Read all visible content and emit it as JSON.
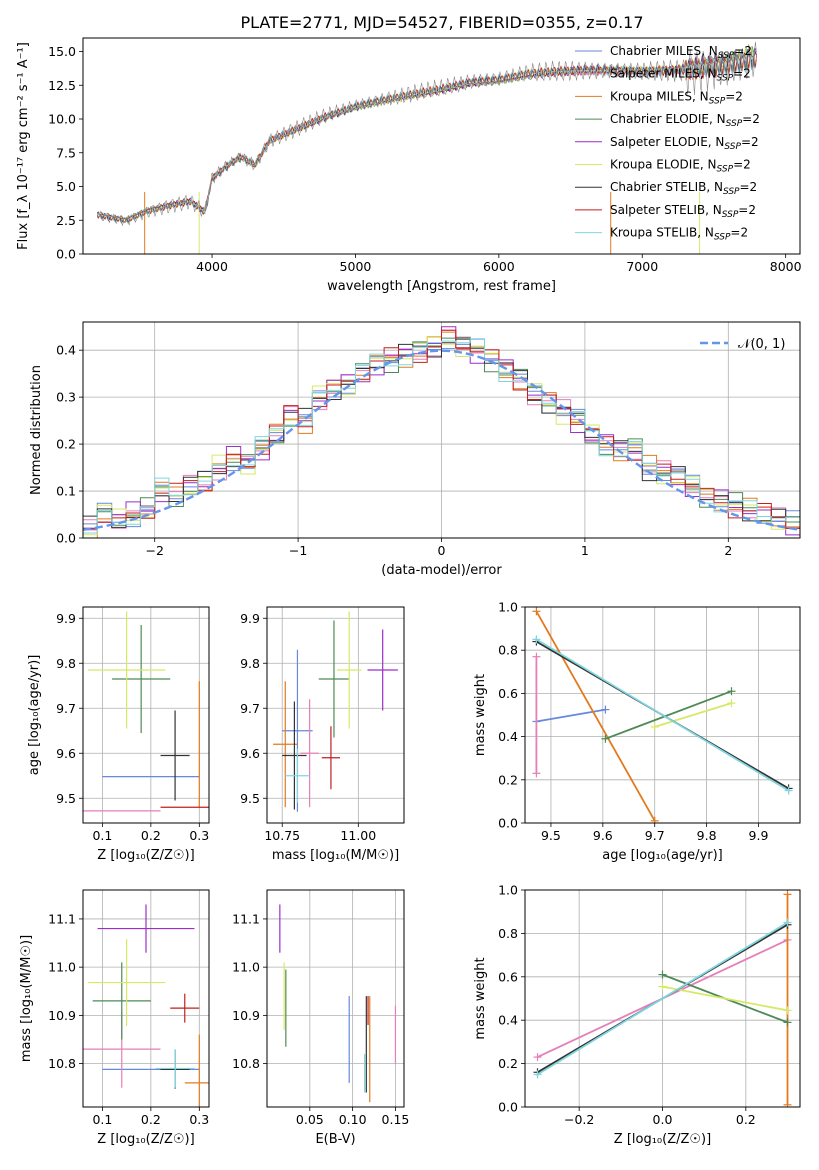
{
  "figure_title": "PLATE=2771, MJD=54527, FIBERID=0355, z=0.17",
  "series_styles": [
    {
      "name": "Chabrier MILES",
      "color": "#6688dd"
    },
    {
      "name": "Salpeter MILES",
      "color": "#e67fb8"
    },
    {
      "name": "Kroupa MILES",
      "color": "#e37a1f"
    },
    {
      "name": "Chabrier ELODIE",
      "color": "#4e8a55"
    },
    {
      "name": "Salpeter ELODIE",
      "color": "#9b2fc9"
    },
    {
      "name": "Kroupa ELODIE",
      "color": "#d6e866"
    },
    {
      "name": "Chabrier STELIB",
      "color": "#333333"
    },
    {
      "name": "Salpeter STELIB",
      "color": "#c21f1f"
    },
    {
      "name": "Kroupa STELIB",
      "color": "#7fd6e0"
    }
  ],
  "chart_data": [
    {
      "id": "spectrum",
      "type": "line",
      "xlabel": "wavelength [Angstrom, rest frame]",
      "ylabel": "Flux [f_λ 10⁻¹⁷ erg cm⁻² s⁻¹ A⁻¹]",
      "xlim": [
        3100,
        8100
      ],
      "ylim": [
        0,
        16
      ],
      "xticks": [
        4000,
        5000,
        6000,
        7000,
        8000
      ],
      "yticks": [
        "0.0",
        "2.5",
        "5.0",
        "7.5",
        "10.0",
        "12.5",
        "15.0"
      ],
      "grid": false,
      "legend_position": "top-right",
      "legend": [
        {
          "prefix": "Chabrier MILES, N",
          "sub": "SSP",
          "suffix": "=2"
        },
        {
          "prefix": "Salpeter MILES, N",
          "sub": "SSP",
          "suffix": "=2"
        },
        {
          "prefix": "Kroupa MILES, N",
          "sub": "SSP",
          "suffix": "=2"
        },
        {
          "prefix": "Chabrier ELODIE, N",
          "sub": "SSP",
          "suffix": "=2"
        },
        {
          "prefix": "Salpeter ELODIE, N",
          "sub": "SSP",
          "suffix": "=2"
        },
        {
          "prefix": "Kroupa ELODIE, N",
          "sub": "SSP",
          "suffix": "=2"
        },
        {
          "prefix": "Chabrier STELIB, N",
          "sub": "SSP",
          "suffix": "=2"
        },
        {
          "prefix": "Salpeter STELIB, N",
          "sub": "SSP",
          "suffix": "=2"
        },
        {
          "prefix": "Kroupa STELIB, N",
          "sub": "SSP",
          "suffix": "=2"
        }
      ],
      "data_color": "#888888",
      "data_flux": {
        "x": [
          3200,
          3400,
          3550,
          3700,
          3850,
          3950,
          4000,
          4100,
          4200,
          4300,
          4400,
          4600,
          4800,
          5000,
          5200,
          5400,
          5600,
          5800,
          6000,
          6200,
          6400,
          6600,
          6800,
          7000,
          7200,
          7400,
          7600,
          7800
        ],
        "y": [
          2.9,
          2.5,
          3.2,
          3.6,
          3.9,
          3.1,
          5.6,
          6.5,
          7.2,
          6.6,
          8.4,
          9.3,
          10.2,
          10.9,
          11.4,
          11.8,
          12.2,
          12.7,
          12.9,
          13.3,
          13.5,
          13.6,
          13.6,
          13.5,
          13.6,
          13.8,
          14.1,
          14.6
        ]
      },
      "mask_lines_x": [
        3530,
        3910,
        6780,
        7400
      ]
    },
    {
      "id": "residual-histogram",
      "type": "line",
      "xlabel": "(data-model)/error",
      "ylabel": "Normed distribution",
      "xlim": [
        -2.5,
        2.5
      ],
      "ylim": [
        0,
        0.46
      ],
      "xticks": [
        "−2",
        "−1",
        "0",
        "1",
        "2"
      ],
      "yticks": [
        "0.0",
        "0.1",
        "0.2",
        "0.3",
        "0.4"
      ],
      "grid": true,
      "legend_position": "top-right",
      "legend": [
        {
          "name": "𝒩(0, 1)",
          "color": "#6495ED",
          "dashed": true
        }
      ],
      "bin_edges": [
        -2.5,
        -2.4,
        -2.3,
        -2.2,
        -2.1,
        -2.0,
        -1.9,
        -1.8,
        -1.7,
        -1.6,
        -1.5,
        -1.4,
        -1.3,
        -1.2,
        -1.1,
        -1.0,
        -0.9,
        -0.8,
        -0.7,
        -0.6,
        -0.5,
        -0.4,
        -0.3,
        -0.2,
        -0.1,
        0.0,
        0.1,
        0.2,
        0.3,
        0.4,
        0.5,
        0.6,
        0.7,
        0.8,
        0.9,
        1.0,
        1.1,
        1.2,
        1.3,
        1.4,
        1.5,
        1.6,
        1.7,
        1.8,
        1.9,
        2.0,
        2.1,
        2.2,
        2.3,
        2.4,
        2.5
      ],
      "histogram_envelope": [
        0.02,
        0.05,
        0.04,
        0.05,
        0.06,
        0.1,
        0.09,
        0.11,
        0.12,
        0.15,
        0.17,
        0.16,
        0.19,
        0.22,
        0.26,
        0.25,
        0.3,
        0.32,
        0.33,
        0.35,
        0.37,
        0.38,
        0.39,
        0.4,
        0.41,
        0.43,
        0.41,
        0.4,
        0.38,
        0.36,
        0.34,
        0.31,
        0.29,
        0.27,
        0.25,
        0.22,
        0.2,
        0.19,
        0.19,
        0.15,
        0.14,
        0.13,
        0.11,
        0.09,
        0.08,
        0.07,
        0.06,
        0.05,
        0.04,
        0.03
      ],
      "gaussian": {
        "mean": 0,
        "sigma": 1
      }
    },
    {
      "id": "age-vs-metallicity",
      "type": "scatter",
      "xlabel": "Z [log₁₀(Z/Z☉)]",
      "ylabel": "age  [log₁₀(age/yr)]",
      "xlim": [
        0.06,
        0.32
      ],
      "ylim": [
        9.445,
        9.925
      ],
      "xticks": [
        0.1,
        0.2,
        0.3
      ],
      "xtick_labels": [
        "0.1",
        "0.2",
        "0.3"
      ],
      "yticks": [
        9.5,
        9.6,
        9.7,
        9.8,
        9.9
      ],
      "ytick_labels": [
        "9.5",
        "9.6",
        "9.7",
        "9.8",
        "9.9"
      ],
      "grid": true,
      "points": [
        {
          "series": "Chabrier MILES",
          "x": 0.2,
          "xerr": 0.1,
          "y": 9.548,
          "yerr": 0
        },
        {
          "series": "Salpeter MILES",
          "x": 0.14,
          "xerr": 0.08,
          "y": 9.472,
          "yerr": 0
        },
        {
          "series": "Kroupa MILES",
          "x": 0.3,
          "xerr": 0.0,
          "y": 9.62,
          "yerr": 0.14
        },
        {
          "series": "Chabrier ELODIE",
          "x": 0.18,
          "xerr": 0.06,
          "y": 9.765,
          "yerr": 0.12
        },
        {
          "series": "Kroupa ELODIE",
          "x": 0.15,
          "xerr": 0.08,
          "y": 9.785,
          "yerr": 0.13
        },
        {
          "series": "Chabrier STELIB",
          "x": 0.25,
          "xerr": 0.03,
          "y": 9.595,
          "yerr": 0.1
        },
        {
          "series": "Salpeter STELIB",
          "x": 0.27,
          "xerr": 0.05,
          "y": 9.48,
          "yerr": 0
        }
      ]
    },
    {
      "id": "age-vs-mass",
      "type": "scatter",
      "xlabel": "mass [log₁₀(M/M☉)]",
      "ylabel": "",
      "xlim": [
        10.7,
        11.15
      ],
      "ylim": [
        9.445,
        9.925
      ],
      "xticks": [
        10.75,
        11.0
      ],
      "xtick_labels": [
        "10.75",
        "11.00"
      ],
      "yticks": [
        9.5,
        9.6,
        9.7,
        9.8,
        9.9
      ],
      "ytick_labels": [
        "9.5",
        "9.6",
        "9.7",
        "9.8",
        "9.9"
      ],
      "grid": true,
      "points": [
        {
          "series": "Chabrier MILES",
          "x": 10.8,
          "xerr": 0.05,
          "y": 9.65,
          "yerr": 0.18
        },
        {
          "series": "Salpeter MILES",
          "x": 10.84,
          "xerr": 0.03,
          "y": 9.6,
          "yerr": 0.12
        },
        {
          "series": "Kroupa MILES",
          "x": 10.76,
          "xerr": 0.04,
          "y": 9.62,
          "yerr": 0.14
        },
        {
          "series": "Chabrier ELODIE",
          "x": 10.92,
          "xerr": 0.05,
          "y": 9.765,
          "yerr": 0.13
        },
        {
          "series": "Salpeter ELODIE",
          "x": 11.08,
          "xerr": 0.05,
          "y": 9.785,
          "yerr": 0.09
        },
        {
          "series": "Kroupa ELODIE",
          "x": 10.97,
          "xerr": 0.04,
          "y": 9.785,
          "yerr": 0.13
        },
        {
          "series": "Chabrier STELIB",
          "x": 10.79,
          "xerr": 0.04,
          "y": 9.595,
          "yerr": 0.12
        },
        {
          "series": "Salpeter STELIB",
          "x": 10.91,
          "xerr": 0.03,
          "y": 9.59,
          "yerr": 0.07
        },
        {
          "series": "Kroupa STELIB",
          "x": 10.8,
          "xerr": 0.04,
          "y": 9.55,
          "yerr": 0.06
        }
      ]
    },
    {
      "id": "mass-weight-vs-age",
      "type": "line",
      "xlabel": "age  [log₁₀(age/yr)]",
      "ylabel": "mass weight",
      "xlim": [
        9.45,
        9.98
      ],
      "ylim": [
        0,
        1
      ],
      "xticks": [
        9.5,
        9.6,
        9.7,
        9.8,
        9.9
      ],
      "xtick_labels": [
        "9.5",
        "9.6",
        "9.7",
        "9.8",
        "9.9"
      ],
      "yticks": [
        0,
        0.2,
        0.4,
        0.6,
        0.8,
        1.0
      ],
      "ytick_labels": [
        "0.0",
        "0.2",
        "0.4",
        "0.6",
        "0.8",
        "1.0"
      ],
      "grid": true,
      "series": [
        {
          "name": "Chabrier MILES",
          "x": [
            9.472,
            9.605
          ],
          "y": [
            0.47,
            0.525
          ]
        },
        {
          "name": "Salpeter MILES",
          "x": [
            9.472,
            9.472
          ],
          "y": [
            0.23,
            0.77
          ]
        },
        {
          "name": "Kroupa MILES",
          "x": [
            9.472,
            9.7
          ],
          "y": [
            0.98,
            0.01
          ]
        },
        {
          "name": "Chabrier ELODIE",
          "x": [
            9.605,
            9.848
          ],
          "y": [
            0.39,
            0.61
          ]
        },
        {
          "name": "Kroupa ELODIE",
          "x": [
            9.7,
            9.848
          ],
          "y": [
            0.445,
            0.555
          ]
        },
        {
          "name": "Chabrier STELIB",
          "x": [
            9.472,
            9.958
          ],
          "y": [
            0.84,
            0.16
          ]
        },
        {
          "name": "Kroupa STELIB",
          "x": [
            9.472,
            9.958
          ],
          "y": [
            0.85,
            0.15
          ]
        }
      ]
    },
    {
      "id": "mass-vs-metallicity",
      "type": "scatter",
      "xlabel": "Z [log₁₀(Z/Z☉)]",
      "ylabel": "mass [log₁₀(M/M☉)]",
      "xlim": [
        0.06,
        0.32
      ],
      "ylim": [
        10.71,
        11.16
      ],
      "xticks": [
        0.1,
        0.2,
        0.3
      ],
      "xtick_labels": [
        "0.1",
        "0.2",
        "0.3"
      ],
      "yticks": [
        10.8,
        10.9,
        11.0,
        11.1
      ],
      "ytick_labels": [
        "10.8",
        "10.9",
        "11.0",
        "11.1"
      ],
      "grid": true,
      "points": [
        {
          "series": "Chabrier MILES",
          "x": 0.2,
          "xerr": 0.1,
          "y": 10.788,
          "yerr": 0
        },
        {
          "series": "Salpeter MILES",
          "x": 0.14,
          "xerr": 0.08,
          "y": 10.83,
          "yerr": 0.08
        },
        {
          "series": "Kroupa MILES",
          "x": 0.3,
          "xerr": 0.03,
          "y": 10.76,
          "yerr": 0.1
        },
        {
          "series": "Chabrier ELODIE",
          "x": 0.14,
          "xerr": 0.06,
          "y": 10.93,
          "yerr": 0.08
        },
        {
          "series": "Salpeter ELODIE",
          "x": 0.19,
          "xerr": 0.1,
          "y": 11.08,
          "yerr": 0.05
        },
        {
          "series": "Kroupa ELODIE",
          "x": 0.15,
          "xerr": 0.08,
          "y": 10.968,
          "yerr": 0.09
        },
        {
          "series": "Chabrier STELIB",
          "x": 0.25,
          "xerr": 0.03,
          "y": 10.788,
          "yerr": 0.04
        },
        {
          "series": "Salpeter STELIB",
          "x": 0.27,
          "xerr": 0.03,
          "y": 10.915,
          "yerr": 0.03
        },
        {
          "series": "Kroupa STELIB",
          "x": 0.25,
          "xerr": 0.04,
          "y": 10.79,
          "yerr": 0.04
        }
      ]
    },
    {
      "id": "mass-vs-extinction",
      "type": "scatter",
      "xlabel": "E(B-V)",
      "ylabel": "",
      "xlim": [
        0.0,
        0.16
      ],
      "ylim": [
        10.71,
        11.16
      ],
      "xticks": [
        0.05,
        0.1,
        0.15
      ],
      "xtick_labels": [
        "0.05",
        "0.10",
        "0.15"
      ],
      "yticks": [
        10.8,
        10.9,
        11.0,
        11.1
      ],
      "ytick_labels": [
        "10.8",
        "10.9",
        "11.0",
        "11.1"
      ],
      "grid": true,
      "points": [
        {
          "series": "Chabrier MILES",
          "x": 0.096,
          "xerr": 0,
          "y": 10.85,
          "yerr": 0.09
        },
        {
          "series": "Salpeter MILES",
          "x": 0.15,
          "xerr": 0,
          "y": 10.86,
          "yerr": 0.06
        },
        {
          "series": "Kroupa MILES",
          "x": 0.12,
          "xerr": 0,
          "y": 10.83,
          "yerr": 0.11
        },
        {
          "series": "Chabrier ELODIE",
          "x": 0.022,
          "xerr": 0,
          "y": 10.915,
          "yerr": 0.08
        },
        {
          "series": "Salpeter ELODIE",
          "x": 0.015,
          "xerr": 0,
          "y": 11.08,
          "yerr": 0.05
        },
        {
          "series": "Kroupa ELODIE",
          "x": 0.02,
          "xerr": 0,
          "y": 10.94,
          "yerr": 0.07
        },
        {
          "series": "Chabrier STELIB",
          "x": 0.116,
          "xerr": 0,
          "y": 10.84,
          "yerr": 0.1
        },
        {
          "series": "Salpeter STELIB",
          "x": 0.118,
          "xerr": 0,
          "y": 10.91,
          "yerr": 0.03
        },
        {
          "series": "Kroupa STELIB",
          "x": 0.114,
          "xerr": 0,
          "y": 10.78,
          "yerr": 0.04
        }
      ]
    },
    {
      "id": "mass-weight-vs-metallicity",
      "type": "line",
      "xlabel": "Z [log₁₀(Z/Z☉)]",
      "ylabel": "mass weight",
      "xlim": [
        -0.33,
        0.33
      ],
      "ylim": [
        0,
        1
      ],
      "xticks": [
        -0.2,
        0.0,
        0.2
      ],
      "xtick_labels": [
        "−0.2",
        "0.0",
        "0.2"
      ],
      "yticks": [
        0,
        0.2,
        0.4,
        0.6,
        0.8,
        1.0
      ],
      "ytick_labels": [
        "0.0",
        "0.2",
        "0.4",
        "0.6",
        "0.8",
        "1.0"
      ],
      "grid": true,
      "series": [
        {
          "name": "Salpeter MILES",
          "x": [
            -0.3,
            0.3
          ],
          "y": [
            0.23,
            0.77
          ]
        },
        {
          "name": "Kroupa MILES",
          "x": [
            0.3,
            0.3
          ],
          "y": [
            0.01,
            0.98
          ]
        },
        {
          "name": "Chabrier ELODIE",
          "x": [
            0.0,
            0.3
          ],
          "y": [
            0.61,
            0.39
          ]
        },
        {
          "name": "Kroupa ELODIE",
          "x": [
            0.0,
            0.3
          ],
          "y": [
            0.555,
            0.445
          ]
        },
        {
          "name": "Chabrier STELIB",
          "x": [
            -0.3,
            0.3
          ],
          "y": [
            0.16,
            0.84
          ]
        },
        {
          "name": "Kroupa STELIB",
          "x": [
            -0.3,
            0.3
          ],
          "y": [
            0.15,
            0.85
          ]
        }
      ]
    }
  ]
}
